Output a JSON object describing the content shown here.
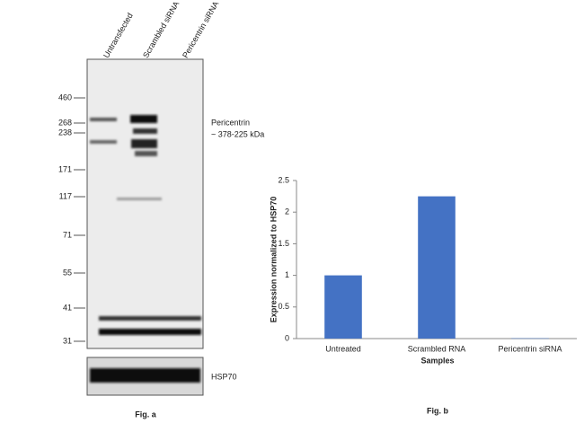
{
  "blot": {
    "lanes": [
      "Untransfected",
      "Scrambled siRNA",
      "Pericentrin siRNA"
    ],
    "markers": [
      460,
      268,
      238,
      171,
      117,
      71,
      55,
      41,
      31
    ],
    "target_name": "Pericentrin",
    "target_size": "~ 378-225 kDa",
    "loading_control": "HSP70",
    "caption": "Fig. a"
  },
  "chart_data": {
    "type": "bar",
    "caption": "Fig. b",
    "x_label": "Samples",
    "y_label": "Expression normalized to HSP70",
    "categories": [
      "Untreated",
      "Scrambled RNA",
      "Pericentrin siRNA"
    ],
    "values": [
      1,
      2.25,
      0.005
    ],
    "color": "#4472c4",
    "ylim": [
      0,
      2.5
    ],
    "yticks": [
      0,
      0.5,
      1,
      1.5,
      2,
      2.5
    ],
    "grid": false
  }
}
